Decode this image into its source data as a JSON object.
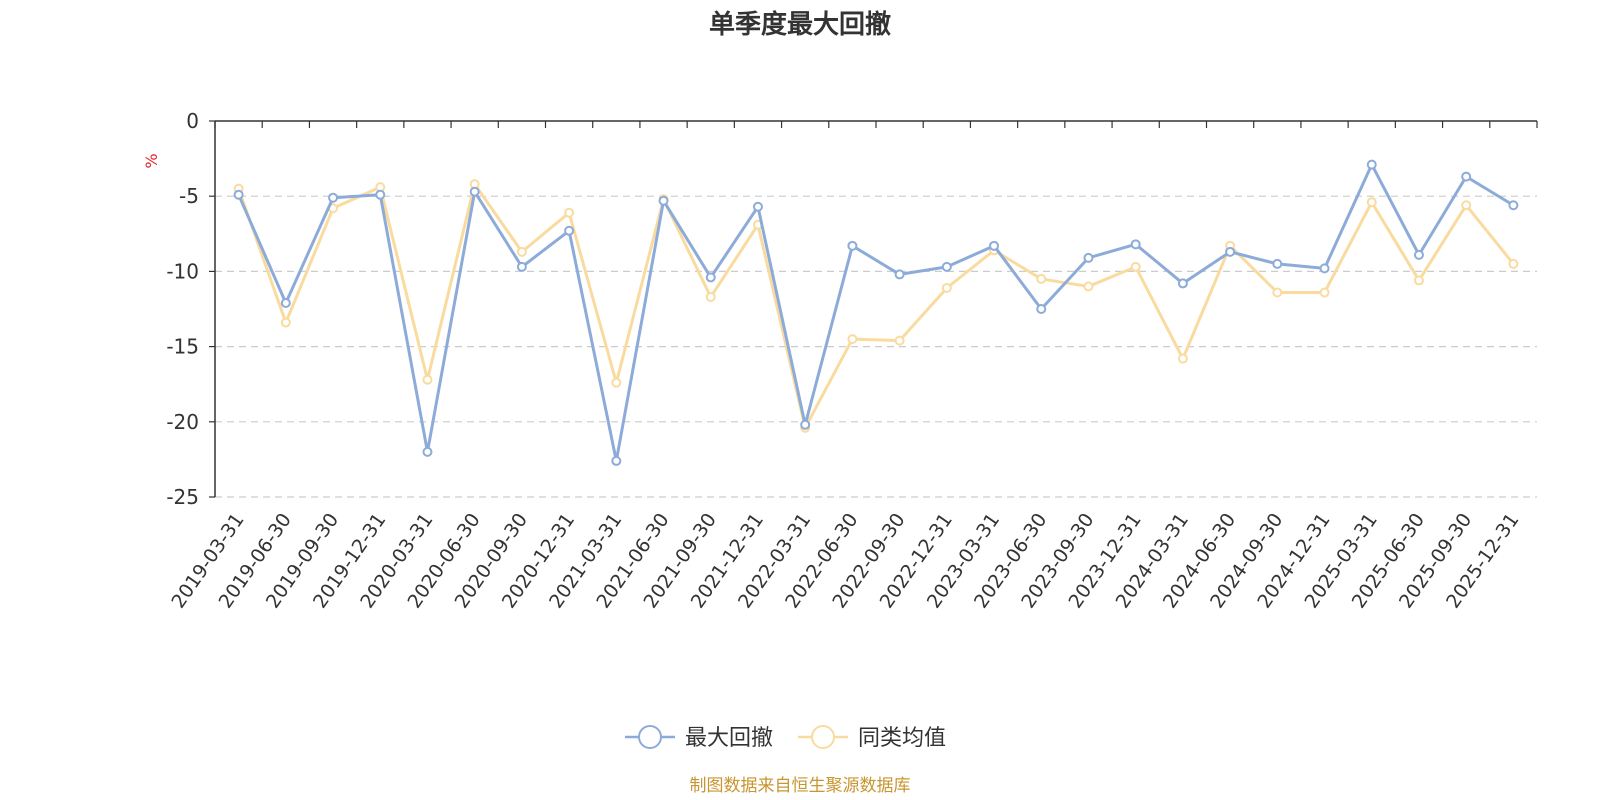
{
  "chart_data": {
    "type": "line",
    "title": "单季度最大回撤",
    "ylabel": "%",
    "ylim": [
      -25,
      0
    ],
    "yticks": [
      0,
      -5,
      -10,
      -15,
      -20,
      -25
    ],
    "grid": true,
    "legend_position": "bottom",
    "categories": [
      "2019-03-31",
      "2019-06-30",
      "2019-09-30",
      "2019-12-31",
      "2020-03-31",
      "2020-06-30",
      "2020-09-30",
      "2020-12-31",
      "2021-03-31",
      "2021-06-30",
      "2021-09-30",
      "2021-12-31",
      "2022-03-31",
      "2022-06-30",
      "2022-09-30",
      "2022-12-31",
      "2023-03-31",
      "2023-06-30",
      "2023-09-30",
      "2023-12-31",
      "2024-03-31",
      "2024-06-30",
      "2024-09-30",
      "2024-12-31",
      "2025-03-31",
      "2025-06-30",
      "2025-09-30",
      "2025-12-31"
    ],
    "series": [
      {
        "name": "最大回撤",
        "color": "#8dabd9",
        "values": [
          -4.9,
          -12.1,
          -5.1,
          -4.9,
          -22.0,
          -4.7,
          -9.7,
          -7.3,
          -22.6,
          -5.3,
          -10.4,
          -5.7,
          -20.2,
          -8.3,
          -10.2,
          -9.7,
          -8.3,
          -12.5,
          -9.1,
          -8.2,
          -10.8,
          -8.7,
          -9.5,
          -9.8,
          -2.9,
          -8.9,
          -3.7,
          -5.6
        ]
      },
      {
        "name": "同类均值",
        "color": "#fadb9f",
        "values": [
          -4.5,
          -13.4,
          -5.8,
          -4.4,
          -17.2,
          -4.2,
          -8.7,
          -6.1,
          -17.4,
          -5.2,
          -11.7,
          -6.9,
          -20.4,
          -14.5,
          -14.6,
          -11.1,
          -8.6,
          -10.5,
          -11.0,
          -9.7,
          -15.8,
          -8.3,
          -11.4,
          -11.4,
          -5.4,
          -10.6,
          -5.6,
          -9.5
        ]
      }
    ],
    "source_note": "制图数据来自恒生聚源数据库"
  }
}
